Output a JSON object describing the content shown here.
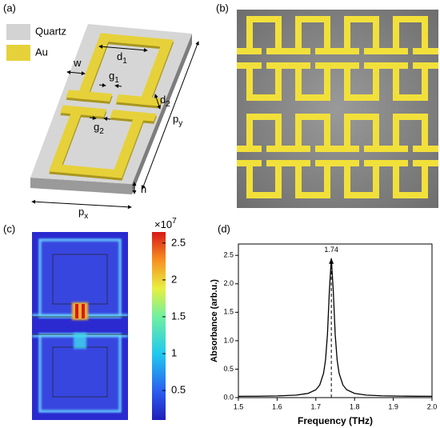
{
  "panel_labels": [
    "(a)",
    "(b)",
    "(c)",
    "(d)"
  ],
  "schematic": {
    "legend": [
      {
        "label": "Quartz",
        "color": "#d3d3d3"
      },
      {
        "label": "Au",
        "color": "#e6d13a"
      }
    ],
    "dimensions": [
      {
        "base": "d",
        "sub": "1"
      },
      {
        "base": "w"
      },
      {
        "base": "g",
        "sub": "1"
      },
      {
        "base": "d",
        "sub": "2"
      },
      {
        "base": "g",
        "sub": "2"
      },
      {
        "base": "p",
        "sub": "y"
      },
      {
        "base": "p",
        "sub": "x"
      },
      {
        "base": "h"
      }
    ]
  },
  "field_map": {
    "colorbar": {
      "multiplier": {
        "base": "×10",
        "power": "7"
      },
      "lim": [
        0.1,
        2.65
      ],
      "ticks": [
        0.5,
        1,
        1.5,
        2,
        2.5
      ]
    }
  },
  "chart_data": {
    "type": "line",
    "xlabel": "Frequency (THz)",
    "ylabel": "Absorbance (arb.u.)",
    "x": [
      1.5,
      1.55,
      1.6,
      1.65,
      1.68,
      1.7,
      1.71,
      1.72,
      1.725,
      1.73,
      1.735,
      1.74,
      1.745,
      1.75,
      1.755,
      1.76,
      1.77,
      1.78,
      1.8,
      1.83,
      1.87,
      1.92,
      1.96,
      2.0
    ],
    "values": [
      0.023,
      0.025,
      0.03,
      0.044,
      0.074,
      0.137,
      0.22,
      0.43,
      0.66,
      1.11,
      1.88,
      2.45,
      1.88,
      1.11,
      0.66,
      0.43,
      0.22,
      0.137,
      0.074,
      0.044,
      0.032,
      0.026,
      0.024,
      0.023
    ],
    "color": "#000000",
    "xlim": [
      1.5,
      2.0
    ],
    "ylim": [
      0,
      2.7
    ],
    "xticks": [
      1.5,
      1.6,
      1.7,
      1.8,
      1.9,
      {
        "value": 2,
        "label": "2.0"
      }
    ],
    "yticks": [
      {
        "value": 0,
        "label": "0.0"
      },
      0.5,
      {
        "value": 1,
        "label": "1.0"
      },
      1.5,
      {
        "value": 2,
        "label": "2.0"
      },
      2.5
    ],
    "annotation": {
      "text": "1.74",
      "x": 1.74,
      "y": 2.45
    }
  }
}
